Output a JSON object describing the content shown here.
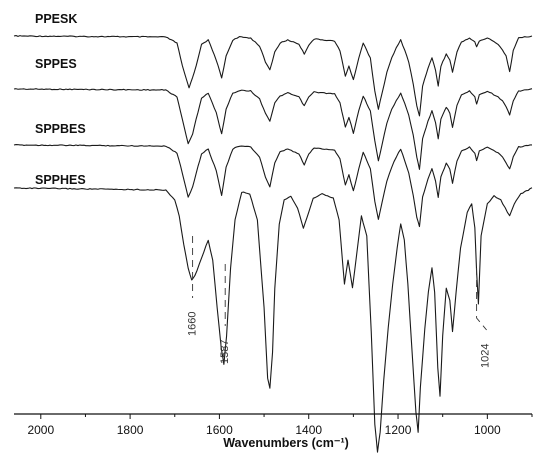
{
  "chart_data": {
    "type": "line",
    "title": "",
    "xlabel": "Wavenumbers (cm⁻¹)",
    "ylabel": "",
    "xlim": [
      2060,
      900
    ],
    "x_reversed": true,
    "grid": false,
    "x_ticks": [
      "2000",
      "1800",
      "1600",
      "1400",
      "1200",
      "1000"
    ],
    "x_tick_values": [
      2000,
      1800,
      1600,
      1400,
      1200,
      1000
    ],
    "annotations": [
      {
        "label": "1660",
        "x": 1660
      },
      {
        "label": "1587",
        "x": 1587
      },
      {
        "label": "1024",
        "x": 1024
      }
    ],
    "series": [
      {
        "name": "PPESK",
        "points": [
          [
            2060,
            0
          ],
          [
            1720,
            1
          ],
          [
            1695,
            7
          ],
          [
            1683,
            30
          ],
          [
            1668,
            52
          ],
          [
            1652,
            30
          ],
          [
            1640,
            8
          ],
          [
            1625,
            4
          ],
          [
            1607,
            24
          ],
          [
            1595,
            42
          ],
          [
            1585,
            20
          ],
          [
            1570,
            4
          ],
          [
            1555,
            1
          ],
          [
            1530,
            2
          ],
          [
            1510,
            10
          ],
          [
            1497,
            26
          ],
          [
            1487,
            34
          ],
          [
            1476,
            16
          ],
          [
            1464,
            7
          ],
          [
            1447,
            4
          ],
          [
            1422,
            8
          ],
          [
            1410,
            18
          ],
          [
            1400,
            9
          ],
          [
            1388,
            3
          ],
          [
            1342,
            5
          ],
          [
            1330,
            15
          ],
          [
            1318,
            40
          ],
          [
            1310,
            30
          ],
          [
            1300,
            44
          ],
          [
            1288,
            22
          ],
          [
            1278,
            7
          ],
          [
            1262,
            22
          ],
          [
            1252,
            55
          ],
          [
            1244,
            73
          ],
          [
            1236,
            58
          ],
          [
            1225,
            36
          ],
          [
            1214,
            22
          ],
          [
            1204,
            12
          ],
          [
            1194,
            4
          ],
          [
            1185,
            14
          ],
          [
            1176,
            26
          ],
          [
            1166,
            48
          ],
          [
            1158,
            70
          ],
          [
            1152,
            80
          ],
          [
            1145,
            50
          ],
          [
            1133,
            32
          ],
          [
            1124,
            22
          ],
          [
            1116,
            34
          ],
          [
            1110,
            50
          ],
          [
            1104,
            30
          ],
          [
            1092,
            18
          ],
          [
            1084,
            24
          ],
          [
            1078,
            36
          ],
          [
            1068,
            16
          ],
          [
            1058,
            6
          ],
          [
            1040,
            2
          ],
          [
            1028,
            6
          ],
          [
            1024,
            11
          ],
          [
            1018,
            5
          ],
          [
            1000,
            2
          ],
          [
            976,
            8
          ],
          [
            966,
            14
          ],
          [
            958,
            20
          ],
          [
            950,
            36
          ],
          [
            942,
            14
          ],
          [
            930,
            2
          ],
          [
            900,
            0
          ]
        ]
      },
      {
        "name": "SPPES",
        "points": [
          [
            2060,
            0
          ],
          [
            1720,
            1
          ],
          [
            1695,
            8
          ],
          [
            1683,
            30
          ],
          [
            1670,
            55
          ],
          [
            1660,
            45
          ],
          [
            1652,
            30
          ],
          [
            1640,
            9
          ],
          [
            1625,
            4
          ],
          [
            1607,
            24
          ],
          [
            1595,
            45
          ],
          [
            1585,
            20
          ],
          [
            1570,
            4
          ],
          [
            1550,
            1
          ],
          [
            1530,
            2
          ],
          [
            1510,
            10
          ],
          [
            1497,
            24
          ],
          [
            1487,
            32
          ],
          [
            1476,
            14
          ],
          [
            1464,
            7
          ],
          [
            1447,
            4
          ],
          [
            1422,
            8
          ],
          [
            1410,
            17
          ],
          [
            1400,
            8
          ],
          [
            1388,
            3
          ],
          [
            1342,
            5
          ],
          [
            1330,
            14
          ],
          [
            1318,
            38
          ],
          [
            1310,
            28
          ],
          [
            1300,
            44
          ],
          [
            1288,
            22
          ],
          [
            1278,
            7
          ],
          [
            1262,
            22
          ],
          [
            1252,
            52
          ],
          [
            1244,
            72
          ],
          [
            1236,
            56
          ],
          [
            1225,
            34
          ],
          [
            1214,
            20
          ],
          [
            1204,
            12
          ],
          [
            1194,
            4
          ],
          [
            1185,
            14
          ],
          [
            1176,
            26
          ],
          [
            1166,
            46
          ],
          [
            1158,
            68
          ],
          [
            1152,
            80
          ],
          [
            1145,
            50
          ],
          [
            1133,
            32
          ],
          [
            1124,
            22
          ],
          [
            1116,
            34
          ],
          [
            1110,
            50
          ],
          [
            1104,
            30
          ],
          [
            1092,
            18
          ],
          [
            1084,
            24
          ],
          [
            1078,
            38
          ],
          [
            1068,
            16
          ],
          [
            1058,
            6
          ],
          [
            1040,
            2
          ],
          [
            1028,
            8
          ],
          [
            1024,
            15
          ],
          [
            1018,
            6
          ],
          [
            1000,
            2
          ],
          [
            976,
            8
          ],
          [
            966,
            12
          ],
          [
            958,
            18
          ],
          [
            950,
            26
          ],
          [
            942,
            12
          ],
          [
            930,
            2
          ],
          [
            900,
            0
          ]
        ]
      },
      {
        "name": "SPPBES",
        "points": [
          [
            2060,
            0
          ],
          [
            1720,
            1
          ],
          [
            1695,
            8
          ],
          [
            1683,
            28
          ],
          [
            1670,
            52
          ],
          [
            1660,
            42
          ],
          [
            1652,
            28
          ],
          [
            1640,
            9
          ],
          [
            1625,
            4
          ],
          [
            1607,
            26
          ],
          [
            1595,
            50
          ],
          [
            1585,
            22
          ],
          [
            1570,
            4
          ],
          [
            1555,
            1
          ],
          [
            1530,
            2
          ],
          [
            1510,
            12
          ],
          [
            1497,
            32
          ],
          [
            1487,
            42
          ],
          [
            1476,
            18
          ],
          [
            1464,
            7
          ],
          [
            1447,
            4
          ],
          [
            1422,
            9
          ],
          [
            1410,
            20
          ],
          [
            1400,
            9
          ],
          [
            1388,
            3
          ],
          [
            1342,
            5
          ],
          [
            1330,
            14
          ],
          [
            1318,
            40
          ],
          [
            1310,
            30
          ],
          [
            1300,
            46
          ],
          [
            1288,
            24
          ],
          [
            1278,
            7
          ],
          [
            1262,
            24
          ],
          [
            1252,
            56
          ],
          [
            1244,
            74
          ],
          [
            1236,
            58
          ],
          [
            1225,
            36
          ],
          [
            1214,
            22
          ],
          [
            1204,
            12
          ],
          [
            1194,
            4
          ],
          [
            1185,
            16
          ],
          [
            1176,
            28
          ],
          [
            1166,
            50
          ],
          [
            1158,
            72
          ],
          [
            1152,
            82
          ],
          [
            1145,
            52
          ],
          [
            1133,
            34
          ],
          [
            1124,
            24
          ],
          [
            1116,
            36
          ],
          [
            1110,
            52
          ],
          [
            1104,
            32
          ],
          [
            1092,
            18
          ],
          [
            1084,
            24
          ],
          [
            1078,
            38
          ],
          [
            1068,
            16
          ],
          [
            1058,
            6
          ],
          [
            1040,
            2
          ],
          [
            1028,
            8
          ],
          [
            1024,
            16
          ],
          [
            1018,
            6
          ],
          [
            1000,
            2
          ],
          [
            976,
            8
          ],
          [
            966,
            12
          ],
          [
            958,
            18
          ],
          [
            950,
            24
          ],
          [
            942,
            12
          ],
          [
            930,
            2
          ],
          [
            900,
            0
          ]
        ]
      },
      {
        "name": "SPPHES",
        "points": [
          [
            2060,
            0
          ],
          [
            1720,
            1
          ],
          [
            1700,
            6
          ],
          [
            1690,
            14
          ],
          [
            1680,
            28
          ],
          [
            1670,
            40
          ],
          [
            1662,
            46
          ],
          [
            1655,
            44
          ],
          [
            1645,
            38
          ],
          [
            1635,
            32
          ],
          [
            1625,
            26
          ],
          [
            1615,
            36
          ],
          [
            1605,
            60
          ],
          [
            1596,
            80
          ],
          [
            1590,
            88
          ],
          [
            1584,
            74
          ],
          [
            1575,
            40
          ],
          [
            1565,
            16
          ],
          [
            1550,
            2
          ],
          [
            1532,
            3
          ],
          [
            1515,
            16
          ],
          [
            1500,
            60
          ],
          [
            1492,
            95
          ],
          [
            1487,
            100
          ],
          [
            1481,
            82
          ],
          [
            1476,
            50
          ],
          [
            1466,
            18
          ],
          [
            1455,
            6
          ],
          [
            1440,
            4
          ],
          [
            1425,
            10
          ],
          [
            1412,
            20
          ],
          [
            1400,
            12
          ],
          [
            1390,
            5
          ],
          [
            1370,
            3
          ],
          [
            1345,
            5
          ],
          [
            1332,
            16
          ],
          [
            1320,
            48
          ],
          [
            1312,
            36
          ],
          [
            1302,
            50
          ],
          [
            1292,
            32
          ],
          [
            1282,
            14
          ],
          [
            1270,
            24
          ],
          [
            1260,
            72
          ],
          [
            1252,
            118
          ],
          [
            1246,
            132
          ],
          [
            1240,
            122
          ],
          [
            1232,
            96
          ],
          [
            1222,
            70
          ],
          [
            1212,
            48
          ],
          [
            1202,
            30
          ],
          [
            1194,
            18
          ],
          [
            1186,
            26
          ],
          [
            1178,
            48
          ],
          [
            1168,
            84
          ],
          [
            1160,
            112
          ],
          [
            1155,
            122
          ],
          [
            1150,
            100
          ],
          [
            1140,
            70
          ],
          [
            1132,
            52
          ],
          [
            1124,
            40
          ],
          [
            1118,
            52
          ],
          [
            1111,
            90
          ],
          [
            1106,
            104
          ],
          [
            1100,
            74
          ],
          [
            1092,
            50
          ],
          [
            1084,
            56
          ],
          [
            1078,
            72
          ],
          [
            1070,
            52
          ],
          [
            1060,
            30
          ],
          [
            1045,
            12
          ],
          [
            1035,
            8
          ],
          [
            1028,
            20
          ],
          [
            1024,
            42
          ],
          [
            1020,
            58
          ],
          [
            1014,
            24
          ],
          [
            1000,
            8
          ],
          [
            985,
            4
          ],
          [
            970,
            6
          ],
          [
            960,
            10
          ],
          [
            950,
            14
          ],
          [
            940,
            8
          ],
          [
            925,
            3
          ],
          [
            900,
            0
          ]
        ]
      }
    ],
    "notes_units": "y values are relative absorbance depth (arbitrary units, no y-axis printed)"
  }
}
